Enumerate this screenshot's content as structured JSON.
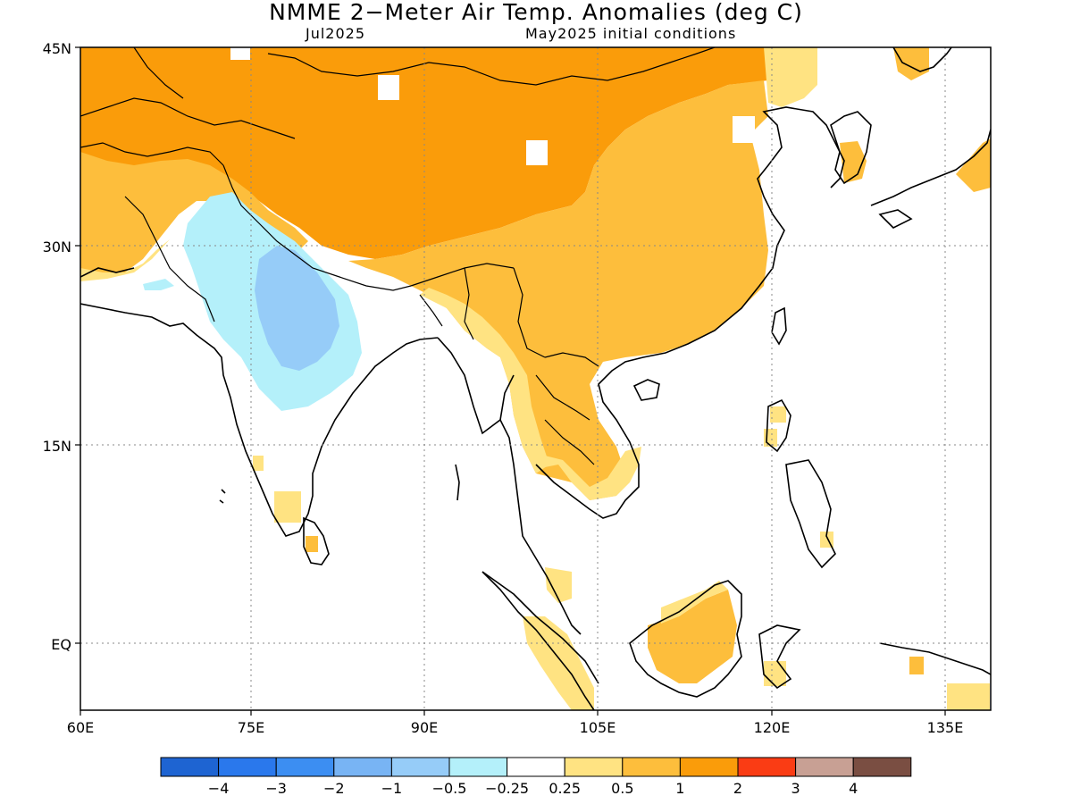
{
  "title": "NMME 2−Meter Air Temp. Anomalies (deg C)",
  "subtitle_left": "Jul2025",
  "subtitle_right": "May2025 initial conditions",
  "map": {
    "lon_range": [
      60,
      140
    ],
    "lat_range": [
      -5,
      45
    ],
    "lon_ticks": [
      "60E",
      "75E",
      "90E",
      "105E",
      "120E",
      "135E"
    ],
    "lat_ticks": [
      "45N",
      "30N",
      "15N",
      "EQ"
    ],
    "grid_lines": "dotted"
  },
  "colorbar": {
    "labels": [
      "−4",
      "−3",
      "−2",
      "−1",
      "−0.5",
      "−0.25",
      "0.25",
      "0.5",
      "1",
      "2",
      "3",
      "4"
    ],
    "colors": [
      "#1e64d2",
      "#2a78ec",
      "#3c8ef2",
      "#78b4f4",
      "#96ccf8",
      "#b4f0fa",
      "#ffffff",
      "#ffe382",
      "#fdbe3c",
      "#fa9c0a",
      "#fa3c14",
      "#c8a094",
      "#7a4e42"
    ]
  }
}
